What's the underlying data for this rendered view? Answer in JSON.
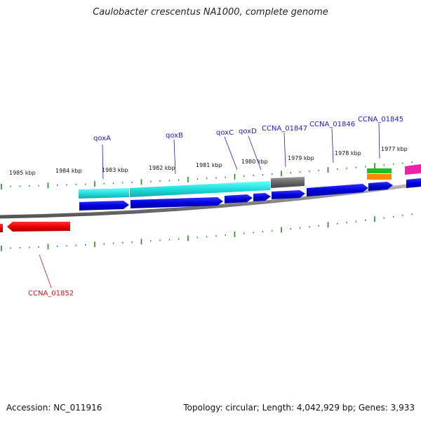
{
  "title": "Caulobacter crescentus NA1000, complete genome",
  "footer": {
    "accession": "Accession: NC_011916",
    "topology": "Topology: circular; Length: 4,042,929 bp; Genes: 3,933"
  },
  "scale_labels": [
    "1985 kbp",
    "1984 kbp",
    "1983 kbp",
    "1982 kbp",
    "1981 kbp",
    "1980 kbp",
    "1979 kbp",
    "1978 kbp",
    "1977 kbp"
  ],
  "gene_labels": [
    {
      "text": "qoxA",
      "color": "#1a1acc"
    },
    {
      "text": "qoxB",
      "color": "#1a1acc"
    },
    {
      "text": "qoxC",
      "color": "#1a1acc"
    },
    {
      "text": "qoxD",
      "color": "#1a1acc"
    },
    {
      "text": "CCNA_01847",
      "color": "#1a1acc"
    },
    {
      "text": "CCNA_01846",
      "color": "#1a1acc"
    },
    {
      "text": "CCNA_01845",
      "color": "#1a1acc"
    },
    {
      "text": "CCNA_01852",
      "color": "#dd1111"
    }
  ],
  "colors": {
    "forward_cds": "#0000dd",
    "reverse_cds": "#ee0000",
    "cog_cyan": "#22dddd",
    "cog_gray": "#666666",
    "cog_green": "#22bb22",
    "cog_orange": "#ff8800",
    "cog_magenta": "#ee22aa",
    "tick": "#228822",
    "backbone": "#888888"
  }
}
